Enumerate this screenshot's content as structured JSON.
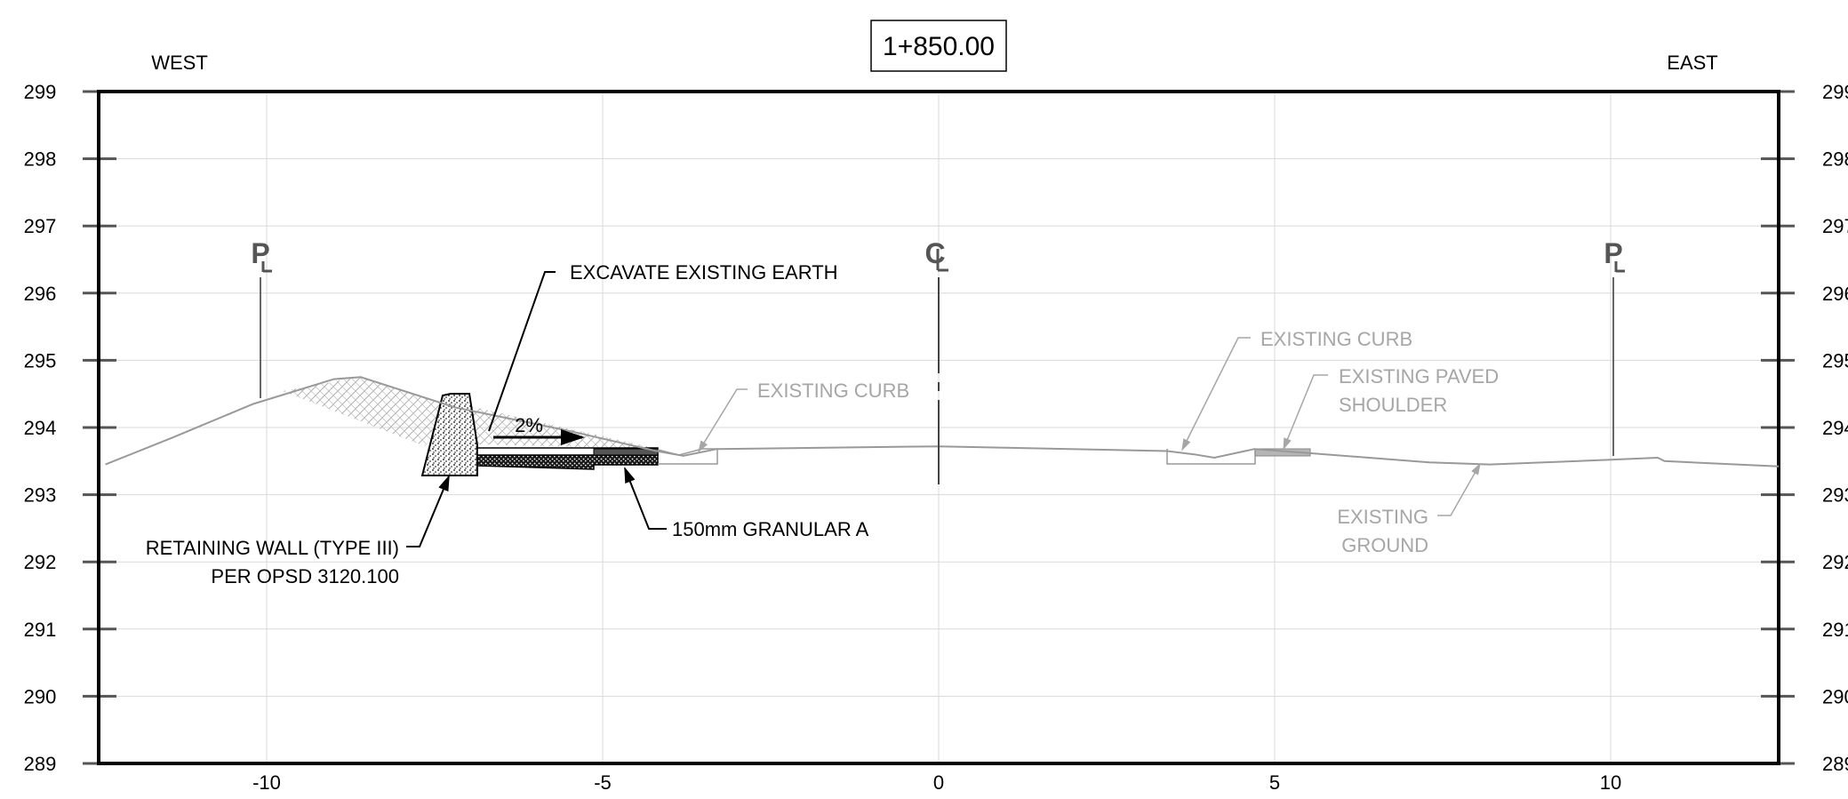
{
  "station": "1+850.00",
  "direction_left": "WEST",
  "direction_right": "EAST",
  "elevation_ticks": [
    299,
    298,
    297,
    296,
    295,
    294,
    293,
    292,
    291,
    290,
    289
  ],
  "offset_ticks": [
    "-10",
    "-5",
    "0",
    "5",
    "10"
  ],
  "markers": {
    "property_line": "PL",
    "centerline": "CL"
  },
  "annotations": {
    "excavate": "EXCAVATE EXISTING EARTH",
    "slope": "2%",
    "retaining_wall_line1": "RETAINING WALL (TYPE III)",
    "retaining_wall_line2": "PER OPSD 3120.100",
    "granular": "150mm GRANULAR A",
    "existing_curb_west": "EXISTING CURB",
    "existing_curb_east": "EXISTING CURB",
    "existing_paved_line1": "EXISTING PAVED",
    "existing_paved_line2": "SHOULDER",
    "existing_ground_line1": "EXISTING",
    "existing_ground_line2": "GROUND"
  },
  "colors": {
    "frame": "#000000",
    "grid": "#d9d9d9",
    "existing": "#999999",
    "existing_text": "#a6a6a6",
    "proposed": "#000000"
  },
  "chart_data": {
    "type": "line",
    "title": "1+850.00",
    "xlim": [
      -12.5,
      12.5
    ],
    "ylim": [
      289,
      299
    ],
    "grid": true,
    "series": [
      {
        "name": "EXISTING GROUND",
        "x": [
          -12.4,
          -11.4,
          -10.2,
          -9.0,
          -8.6,
          -7.2,
          -5.5,
          -4.2,
          -3.8,
          -3.3,
          0.0,
          3.4,
          3.8,
          4.1,
          4.7,
          5.5,
          7.3,
          8.2,
          10.0,
          10.7,
          10.8,
          12.5
        ],
        "y": [
          293.45,
          293.85,
          294.35,
          294.72,
          294.75,
          294.3,
          293.95,
          293.65,
          293.58,
          293.68,
          293.72,
          293.65,
          293.6,
          293.55,
          293.68,
          293.62,
          293.48,
          293.45,
          293.52,
          293.55,
          293.5,
          293.42
        ]
      }
    ]
  }
}
